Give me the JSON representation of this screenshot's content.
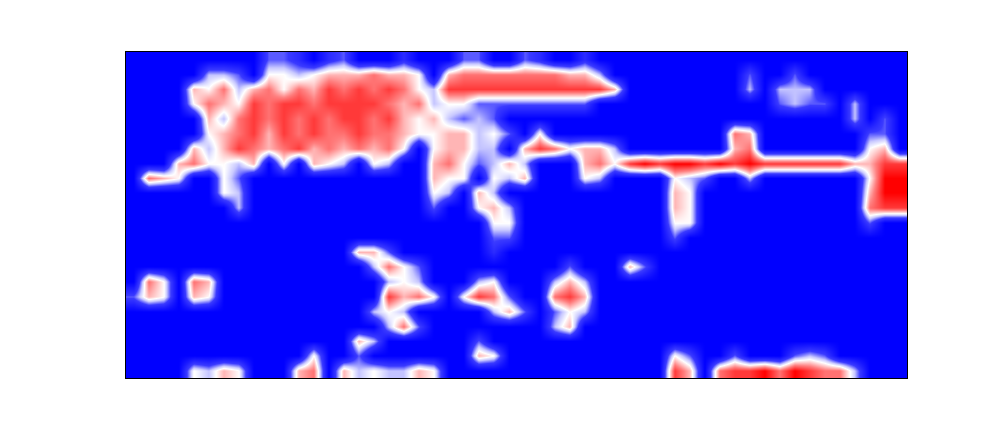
{
  "chart_data": {
    "type": "heatmap",
    "tick_labels": false,
    "grid": false,
    "color_range": [
      0,
      9
    ],
    "z": [
      [
        0,
        0,
        0,
        0,
        0,
        0,
        0,
        0,
        0,
        3,
        3,
        2,
        0,
        2,
        3,
        0,
        0,
        0,
        2,
        0,
        0,
        0,
        3,
        3,
        0,
        0,
        3,
        2,
        0,
        0,
        2,
        0,
        0,
        0,
        0,
        0,
        0,
        0,
        0,
        0,
        0,
        0,
        0,
        0,
        0,
        0,
        0,
        0,
        0,
        0,
        0,
        0
      ],
      [
        0,
        0,
        0,
        0,
        0,
        4,
        4,
        3,
        0,
        5,
        5,
        4,
        5,
        6,
        6,
        6,
        7,
        6,
        6,
        5,
        0,
        6,
        7,
        7,
        7,
        7,
        7,
        7,
        7,
        6,
        6,
        4,
        0,
        0,
        0,
        0,
        0,
        0,
        0,
        0,
        0,
        3,
        0,
        0,
        3,
        0,
        0,
        0,
        0,
        0,
        0,
        0
      ],
      [
        0,
        0,
        0,
        0,
        6,
        5,
        7,
        4,
        6,
        7,
        5,
        7,
        6,
        8,
        7,
        8,
        7,
        8,
        7,
        5,
        4,
        8,
        8,
        8,
        8,
        8,
        8,
        8,
        8,
        8,
        8,
        8,
        6,
        0,
        0,
        0,
        0,
        0,
        0,
        0,
        0,
        4,
        0,
        4,
        4,
        4,
        0,
        0,
        0,
        0,
        0,
        0
      ],
      [
        0,
        0,
        0,
        0,
        5,
        7,
        6,
        5,
        8,
        7,
        8,
        8,
        7,
        8,
        8,
        8,
        8,
        7,
        6,
        7,
        4,
        5,
        5,
        3,
        3,
        3,
        3,
        3,
        3,
        3,
        3,
        0,
        0,
        0,
        0,
        0,
        0,
        0,
        0,
        0,
        0,
        0,
        0,
        3,
        4,
        3,
        3,
        0,
        4,
        0,
        0,
        0
      ],
      [
        0,
        0,
        0,
        0,
        0,
        6,
        4,
        7,
        8,
        7,
        8,
        7,
        8,
        7,
        8,
        8,
        7,
        8,
        6,
        5,
        6,
        4,
        3,
        4,
        3,
        0,
        0,
        0,
        0,
        0,
        0,
        0,
        0,
        0,
        0,
        0,
        0,
        0,
        0,
        0,
        0,
        0,
        0,
        0,
        0,
        0,
        0,
        0,
        4,
        0,
        3,
        0
      ],
      [
        0,
        0,
        0,
        0,
        0,
        5,
        6,
        7,
        8,
        6,
        8,
        7,
        8,
        7,
        7,
        8,
        7,
        7,
        6,
        5,
        5,
        6,
        6,
        4,
        5,
        3,
        0,
        5,
        0,
        0,
        0,
        0,
        0,
        0,
        0,
        0,
        0,
        0,
        0,
        0,
        7,
        6,
        0,
        0,
        0,
        0,
        0,
        0,
        0,
        3,
        3,
        0
      ],
      [
        0,
        0,
        0,
        0,
        6,
        4,
        6,
        8,
        7,
        6,
        7,
        8,
        6,
        7,
        6,
        7,
        6,
        7,
        5,
        0,
        5,
        6,
        6,
        4,
        4,
        0,
        6,
        8,
        7,
        5,
        6,
        6,
        4,
        0,
        0,
        0,
        0,
        0,
        0,
        0,
        6,
        7,
        0,
        0,
        0,
        0,
        0,
        0,
        0,
        5,
        6,
        0
      ],
      [
        0,
        0,
        0,
        6,
        7,
        5,
        5,
        4,
        6,
        0,
        5,
        0,
        6,
        5,
        4,
        0,
        5,
        4,
        0,
        0,
        6,
        7,
        5,
        3,
        4,
        6,
        4,
        0,
        0,
        0,
        6,
        7,
        5,
        8,
        9,
        8,
        9,
        9,
        8,
        9,
        8,
        9,
        8,
        8,
        8,
        8,
        8,
        8,
        6,
        6,
        8,
        8
      ],
      [
        0,
        7,
        6,
        5,
        0,
        0,
        5,
        3,
        0,
        0,
        0,
        0,
        0,
        0,
        0,
        0,
        0,
        0,
        0,
        0,
        6,
        5,
        5,
        0,
        5,
        4,
        6,
        0,
        0,
        0,
        5,
        4,
        0,
        0,
        0,
        0,
        5,
        4,
        3,
        0,
        0,
        4,
        0,
        0,
        0,
        0,
        0,
        0,
        0,
        5,
        9,
        9
      ],
      [
        0,
        0,
        0,
        0,
        0,
        0,
        5,
        4,
        0,
        0,
        0,
        0,
        0,
        0,
        0,
        0,
        0,
        0,
        0,
        0,
        5,
        4,
        0,
        6,
        4,
        0,
        0,
        0,
        0,
        0,
        0,
        0,
        0,
        0,
        0,
        0,
        6,
        5,
        0,
        0,
        0,
        0,
        0,
        0,
        0,
        0,
        0,
        0,
        0,
        6,
        9,
        9
      ],
      [
        0,
        0,
        0,
        0,
        0,
        0,
        0,
        4,
        0,
        0,
        0,
        0,
        0,
        0,
        0,
        0,
        0,
        0,
        0,
        0,
        3,
        0,
        0,
        5,
        6,
        4,
        0,
        0,
        0,
        0,
        0,
        0,
        0,
        0,
        0,
        0,
        6,
        5,
        0,
        0,
        0,
        0,
        0,
        0,
        0,
        0,
        0,
        0,
        0,
        7,
        8,
        8
      ],
      [
        0,
        0,
        0,
        0,
        0,
        0,
        0,
        0,
        0,
        0,
        0,
        0,
        0,
        0,
        0,
        0,
        0,
        0,
        0,
        0,
        0,
        0,
        0,
        0,
        5,
        5,
        0,
        0,
        0,
        0,
        0,
        0,
        0,
        0,
        0,
        0,
        5,
        5,
        0,
        0,
        0,
        0,
        0,
        0,
        0,
        0,
        0,
        0,
        0,
        3,
        0,
        0
      ],
      [
        0,
        0,
        0,
        0,
        0,
        0,
        0,
        0,
        0,
        0,
        0,
        0,
        0,
        0,
        0,
        0,
        0,
        0,
        0,
        0,
        0,
        0,
        0,
        0,
        3,
        3,
        0,
        0,
        0,
        0,
        0,
        0,
        0,
        0,
        0,
        0,
        3,
        0,
        0,
        0,
        0,
        0,
        0,
        0,
        0,
        0,
        0,
        0,
        0,
        0,
        0,
        0
      ],
      [
        0,
        0,
        0,
        0,
        0,
        0,
        0,
        0,
        0,
        0,
        0,
        0,
        0,
        0,
        0,
        6,
        6,
        3,
        0,
        0,
        0,
        0,
        0,
        0,
        2,
        0,
        0,
        0,
        0,
        0,
        0,
        0,
        0,
        0,
        0,
        0,
        0,
        0,
        0,
        0,
        0,
        0,
        0,
        0,
        0,
        0,
        0,
        0,
        0,
        0,
        0,
        0
      ],
      [
        0,
        0,
        0,
        0,
        0,
        0,
        0,
        0,
        0,
        0,
        0,
        0,
        0,
        0,
        0,
        0,
        4,
        7,
        5,
        3,
        0,
        0,
        0,
        0,
        0,
        0,
        0,
        0,
        0,
        3,
        0,
        0,
        0,
        6,
        3,
        0,
        0,
        0,
        0,
        0,
        0,
        0,
        0,
        0,
        0,
        0,
        0,
        0,
        0,
        0,
        0,
        0
      ],
      [
        0,
        7,
        5,
        0,
        7,
        6,
        0,
        0,
        0,
        0,
        0,
        0,
        0,
        0,
        0,
        0,
        0,
        4,
        5,
        4,
        0,
        0,
        0,
        4,
        5,
        0,
        0,
        0,
        4,
        6,
        4,
        0,
        0,
        0,
        0,
        0,
        0,
        0,
        0,
        0,
        0,
        0,
        0,
        0,
        0,
        0,
        0,
        0,
        0,
        0,
        0,
        0
      ],
      [
        3,
        6,
        5,
        0,
        6,
        5,
        0,
        0,
        0,
        0,
        0,
        0,
        0,
        0,
        0,
        0,
        0,
        8,
        6,
        7,
        5,
        0,
        5,
        8,
        7,
        3,
        0,
        0,
        7,
        8,
        6,
        0,
        0,
        0,
        0,
        0,
        0,
        0,
        0,
        0,
        0,
        0,
        0,
        0,
        0,
        0,
        0,
        0,
        0,
        0,
        0,
        0
      ],
      [
        0,
        0,
        0,
        0,
        0,
        0,
        0,
        0,
        0,
        0,
        0,
        0,
        0,
        0,
        0,
        0,
        4,
        5,
        4,
        0,
        0,
        0,
        0,
        0,
        4,
        6,
        3,
        0,
        3,
        5,
        4,
        0,
        0,
        0,
        0,
        0,
        0,
        0,
        0,
        0,
        0,
        0,
        0,
        0,
        0,
        0,
        0,
        0,
        0,
        0,
        0,
        0
      ],
      [
        0,
        0,
        0,
        0,
        0,
        0,
        0,
        0,
        0,
        0,
        0,
        0,
        0,
        0,
        0,
        0,
        0,
        4,
        7,
        3,
        0,
        0,
        0,
        0,
        0,
        0,
        0,
        0,
        4,
        6,
        0,
        0,
        0,
        0,
        0,
        0,
        0,
        0,
        0,
        0,
        0,
        0,
        0,
        0,
        0,
        0,
        0,
        0,
        0,
        0,
        0,
        0
      ],
      [
        0,
        0,
        0,
        0,
        0,
        0,
        0,
        0,
        0,
        0,
        0,
        0,
        0,
        0,
        0,
        6,
        4,
        0,
        0,
        0,
        0,
        0,
        0,
        3,
        0,
        0,
        0,
        0,
        0,
        0,
        0,
        0,
        0,
        0,
        0,
        0,
        0,
        0,
        0,
        0,
        0,
        0,
        0,
        0,
        0,
        0,
        0,
        0,
        0,
        0,
        0,
        0
      ],
      [
        0,
        0,
        0,
        0,
        0,
        0,
        0,
        0,
        0,
        0,
        0,
        0,
        5,
        0,
        0,
        3,
        0,
        0,
        0,
        0,
        0,
        0,
        0,
        6,
        5,
        0,
        0,
        0,
        0,
        0,
        0,
        0,
        0,
        0,
        0,
        0,
        5,
        3,
        0,
        0,
        3,
        0,
        0,
        0,
        3,
        4,
        3,
        0,
        0,
        0,
        0,
        0
      ],
      [
        0,
        0,
        0,
        0,
        5,
        4,
        6,
        5,
        0,
        0,
        0,
        6,
        7,
        0,
        6,
        4,
        5,
        4,
        4,
        6,
        5,
        0,
        0,
        0,
        0,
        0,
        0,
        0,
        0,
        0,
        0,
        0,
        0,
        0,
        0,
        0,
        8,
        6,
        0,
        7,
        8,
        8,
        9,
        7,
        9,
        8,
        7,
        7,
        4,
        0,
        0,
        0
      ]
    ]
  }
}
